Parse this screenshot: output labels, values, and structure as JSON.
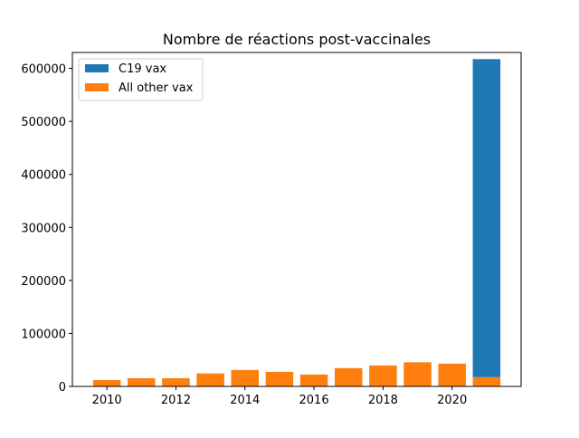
{
  "chart_data": {
    "type": "bar",
    "title": "Nombre de réactions post-vaccinales",
    "xlabel": "",
    "ylabel": "",
    "x": [
      2010,
      2011,
      2012,
      2013,
      2014,
      2015,
      2016,
      2017,
      2018,
      2019,
      2020,
      2021
    ],
    "series": [
      {
        "name": "All other vax",
        "color": "#ff7f0e",
        "values": [
          12000,
          15500,
          15500,
          24500,
          31000,
          27500,
          22500,
          34500,
          39500,
          45500,
          43000,
          17500
        ]
      },
      {
        "name": "C19 vax",
        "color": "#1f77b4",
        "values": [
          0,
          0,
          0,
          0,
          0,
          0,
          0,
          0,
          0,
          0,
          0,
          600000
        ]
      }
    ],
    "stacked": true,
    "xlim": [
      2009.0,
      2022.0
    ],
    "ylim": [
      0,
      630000
    ],
    "x_ticks": [
      "2010",
      "2012",
      "2014",
      "2016",
      "2018",
      "2020"
    ],
    "y_ticks": [
      "0",
      "100000",
      "200000",
      "300000",
      "400000",
      "500000",
      "600000"
    ],
    "legend": {
      "placement": "top-left",
      "entries": [
        "C19 vax",
        "All other vax"
      ]
    },
    "grid": false
  }
}
